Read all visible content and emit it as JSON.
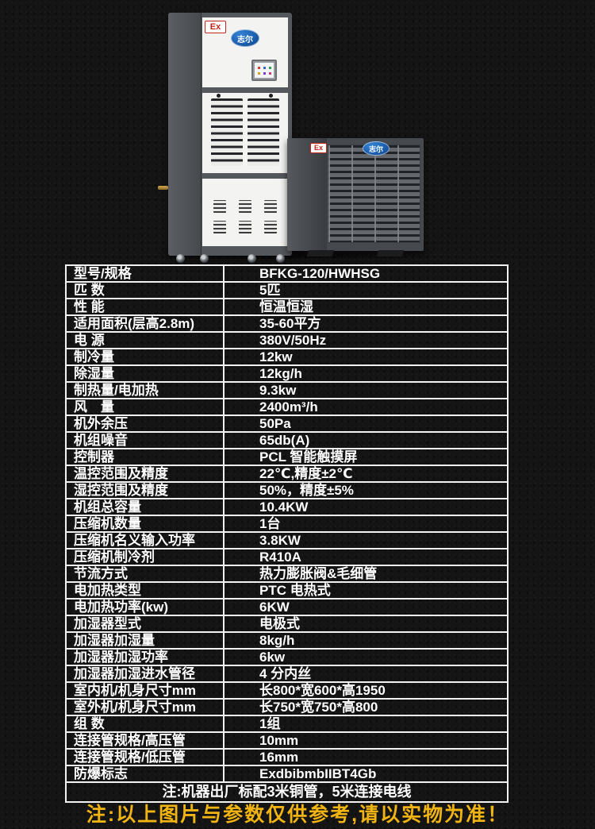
{
  "photo": {
    "ex_badge": "Ex",
    "brand_logo": "志尔",
    "colors": {
      "badge_red": "#c2261b",
      "logo_blue": "#1a63b8",
      "cabinet_white": "#f3f3f1",
      "frame_gray": "#54575c",
      "outdoor_gray": "#63666a"
    }
  },
  "specs": {
    "rows": [
      {
        "label": "型号/规格",
        "value": "BFKG-120/HWHSG"
      },
      {
        "label": "匹 数",
        "value": "5匹"
      },
      {
        "label": "性 能",
        "value": "恒温恒湿"
      },
      {
        "label": "适用面积(层高2.8m)",
        "value": "35-60平方"
      },
      {
        "label": "电 源",
        "value": "380V/50Hz"
      },
      {
        "label": "制冷量",
        "value": "12kw"
      },
      {
        "label": "除湿量",
        "value": "12kg/h"
      },
      {
        "label": "制热量/电加热",
        "value": "9.3kw"
      },
      {
        "label": "风　量",
        "value": "2400m³/h"
      },
      {
        "label": "机外余压",
        "value": "50Pa"
      },
      {
        "label": "机组噪音",
        "value": "65db(A)"
      },
      {
        "label": "控制器",
        "value": "PCL 智能触摸屏"
      },
      {
        "label": "温控范围及精度",
        "value": "22℃,精度±2℃"
      },
      {
        "label": "湿控范围及精度",
        "value": "50%，精度±5%"
      },
      {
        "label": "机组总容量",
        "value": "10.4KW"
      },
      {
        "label": "压缩机数量",
        "value": "1台"
      },
      {
        "label": "压缩机名义输入功率",
        "value": "3.8KW"
      },
      {
        "label": "压缩机制冷剂",
        "value": "R410A"
      },
      {
        "label": "节流方式",
        "value": "热力膨胀阀&毛细管"
      },
      {
        "label": "电加热类型",
        "value": "PTC 电热式"
      },
      {
        "label": "电加热功率(kw)",
        "value": "6KW"
      },
      {
        "label": "加湿器型式",
        "value": "电极式"
      },
      {
        "label": "加湿器加湿量",
        "value": "8kg/h"
      },
      {
        "label": "加湿器加湿功率",
        "value": "6kw"
      },
      {
        "label": "加湿器加湿进水管径",
        "value": "4 分内丝"
      },
      {
        "label": "室内机/机身尺寸mm",
        "value": "长800*宽600*高1950"
      },
      {
        "label": "室外机/机身尺寸mm",
        "value": "长750*宽750*高800"
      },
      {
        "label": "组 数",
        "value": "1组"
      },
      {
        "label": "连接管规格/高压管",
        "value": "10mm"
      },
      {
        "label": "连接管规格/低压管",
        "value": "16mm"
      },
      {
        "label": "防爆标志",
        "value": "ExdbibmbIIBT4Gb"
      }
    ],
    "note": "注:机器出厂标配3米铜管，5米连接电线"
  },
  "footer": {
    "disclaimer": "注:以上图片与参数仅供参考,请以实物为准！",
    "accent_yellow": "#f1b412"
  }
}
